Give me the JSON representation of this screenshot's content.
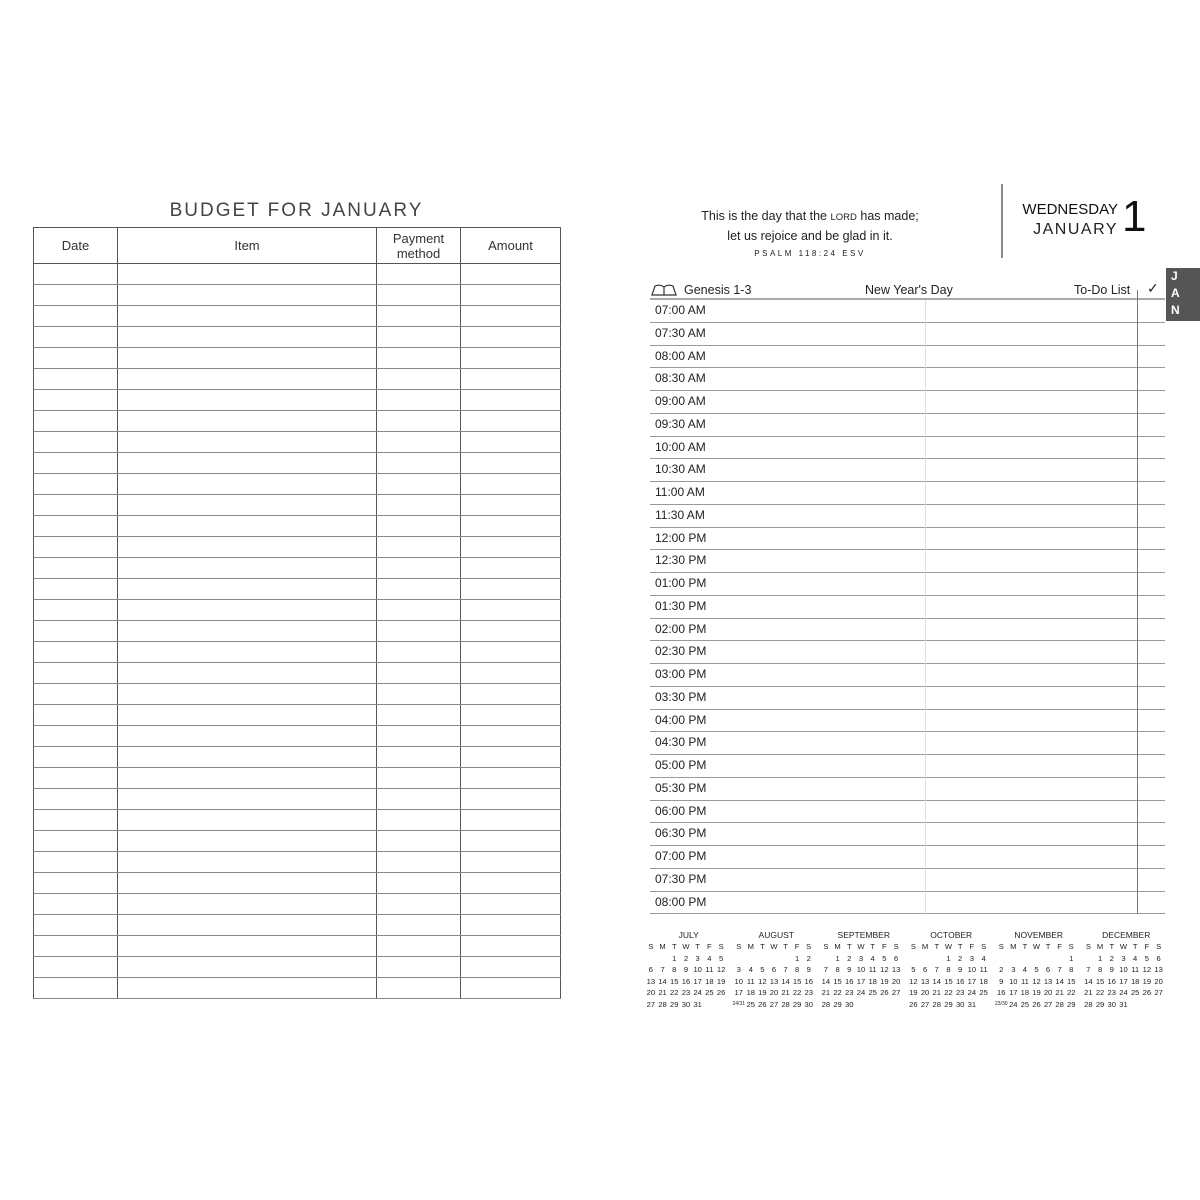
{
  "budget": {
    "title": "BUDGET FOR JANUARY",
    "headers": [
      "Date",
      "Item",
      "Payment method",
      "Amount"
    ],
    "row_count": 35
  },
  "verse": {
    "line1_a": "This is the day that the ",
    "line1_lord": "Lord",
    "line1_b": " has made;",
    "line2": "let us rejoice and be glad in it.",
    "ref": "PSALM 118:24 ESV"
  },
  "date": {
    "weekday": "WEDNESDAY",
    "month": "JANUARY",
    "day": "1"
  },
  "header": {
    "reading": "Genesis 1-3",
    "holiday": "New Year's Day",
    "todo": "To-Do List",
    "check": "✓",
    "book_icon": "open-book-icon"
  },
  "month_tab": [
    "J",
    "A",
    "N"
  ],
  "times": [
    "07:00 AM",
    "07:30 AM",
    "08:00 AM",
    "08:30 AM",
    "09:00 AM",
    "09:30 AM",
    "10:00 AM",
    "10:30 AM",
    "11:00 AM",
    "11:30 AM",
    "12:00 PM",
    "12:30 PM",
    "01:00 PM",
    "01:30 PM",
    "02:00 PM",
    "02:30 PM",
    "03:00 PM",
    "03:30 PM",
    "04:00 PM",
    "04:30 PM",
    "05:00 PM",
    "05:30 PM",
    "06:00 PM",
    "06:30 PM",
    "07:00 PM",
    "07:30 PM",
    "08:00 PM"
  ],
  "weekdays": [
    "S",
    "M",
    "T",
    "W",
    "T",
    "F",
    "S"
  ],
  "calendars": [
    {
      "name": "JULY",
      "weeks": [
        [
          "",
          "",
          "1",
          "2",
          "3",
          "4",
          "5"
        ],
        [
          "6",
          "7",
          "8",
          "9",
          "10",
          "11",
          "12"
        ],
        [
          "13",
          "14",
          "15",
          "16",
          "17",
          "18",
          "19"
        ],
        [
          "20",
          "21",
          "22",
          "23",
          "24",
          "25",
          "26"
        ],
        [
          "27",
          "28",
          "29",
          "30",
          "31",
          "",
          ""
        ]
      ]
    },
    {
      "name": "AUGUST",
      "weeks": [
        [
          "",
          "",
          "",
          "",
          "",
          "1",
          "2"
        ],
        [
          "3",
          "4",
          "5",
          "6",
          "7",
          "8",
          "9"
        ],
        [
          "10",
          "11",
          "12",
          "13",
          "14",
          "15",
          "16"
        ],
        [
          "17",
          "18",
          "19",
          "20",
          "21",
          "22",
          "23"
        ],
        [
          "24/31",
          "25",
          "26",
          "27",
          "28",
          "29",
          "30"
        ]
      ]
    },
    {
      "name": "SEPTEMBER",
      "weeks": [
        [
          "",
          "1",
          "2",
          "3",
          "4",
          "5",
          "6"
        ],
        [
          "7",
          "8",
          "9",
          "10",
          "11",
          "12",
          "13"
        ],
        [
          "14",
          "15",
          "16",
          "17",
          "18",
          "19",
          "20"
        ],
        [
          "21",
          "22",
          "23",
          "24",
          "25",
          "26",
          "27"
        ],
        [
          "28",
          "29",
          "30",
          "",
          "",
          "",
          ""
        ]
      ]
    },
    {
      "name": "OCTOBER",
      "weeks": [
        [
          "",
          "",
          "",
          "1",
          "2",
          "3",
          "4"
        ],
        [
          "5",
          "6",
          "7",
          "8",
          "9",
          "10",
          "11"
        ],
        [
          "12",
          "13",
          "14",
          "15",
          "16",
          "17",
          "18"
        ],
        [
          "19",
          "20",
          "21",
          "22",
          "23",
          "24",
          "25"
        ],
        [
          "26",
          "27",
          "28",
          "29",
          "30",
          "31",
          ""
        ]
      ]
    },
    {
      "name": "NOVEMBER",
      "weeks": [
        [
          "",
          "",
          "",
          "",
          "",
          "",
          "1"
        ],
        [
          "2",
          "3",
          "4",
          "5",
          "6",
          "7",
          "8"
        ],
        [
          "9",
          "10",
          "11",
          "12",
          "13",
          "14",
          "15"
        ],
        [
          "16",
          "17",
          "18",
          "19",
          "20",
          "21",
          "22"
        ],
        [
          "23/30",
          "24",
          "25",
          "26",
          "27",
          "28",
          "29"
        ]
      ]
    },
    {
      "name": "DECEMBER",
      "weeks": [
        [
          "",
          "1",
          "2",
          "3",
          "4",
          "5",
          "6"
        ],
        [
          "7",
          "8",
          "9",
          "10",
          "11",
          "12",
          "13"
        ],
        [
          "14",
          "15",
          "16",
          "17",
          "18",
          "19",
          "20"
        ],
        [
          "21",
          "22",
          "23",
          "24",
          "25",
          "26",
          "27"
        ],
        [
          "28",
          "29",
          "30",
          "31",
          "",
          "",
          ""
        ]
      ]
    }
  ]
}
